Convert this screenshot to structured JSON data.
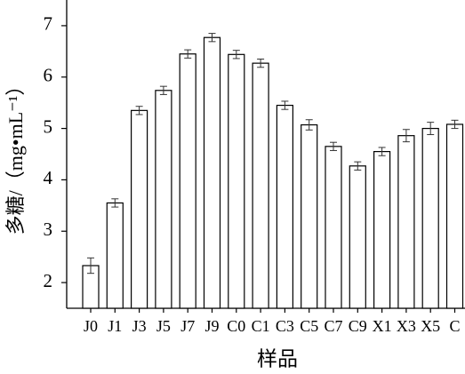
{
  "chart_data": {
    "type": "bar",
    "xlabel": "样品",
    "ylabel": "多糖/（mg•mL⁻¹）",
    "categories": [
      "J0",
      "J1",
      "J3",
      "J5",
      "J7",
      "J9",
      "C0",
      "C1",
      "C3",
      "C5",
      "C7",
      "C9",
      "X1",
      "X3",
      "X5",
      "C"
    ],
    "values": [
      2.33,
      3.55,
      5.35,
      5.74,
      6.45,
      6.77,
      6.44,
      6.27,
      5.45,
      5.07,
      4.65,
      4.27,
      4.55,
      4.86,
      5.0,
      5.08
    ],
    "errors": [
      0.15,
      0.08,
      0.08,
      0.08,
      0.08,
      0.08,
      0.08,
      0.08,
      0.08,
      0.1,
      0.08,
      0.08,
      0.08,
      0.12,
      0.12,
      0.08
    ],
    "color": "#ffffff",
    "ylim": [
      1.5,
      7.5
    ],
    "yticks": [
      2,
      3,
      4,
      5,
      6,
      7
    ],
    "grid": false
  }
}
